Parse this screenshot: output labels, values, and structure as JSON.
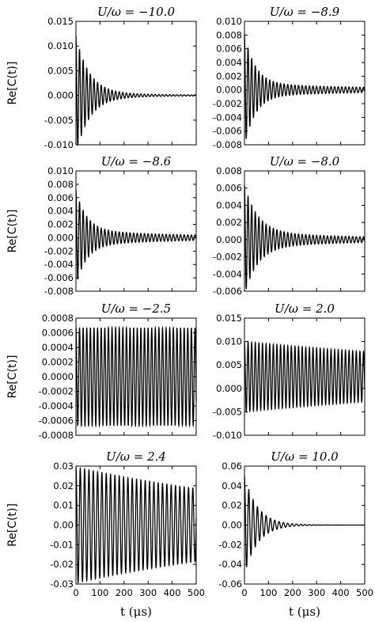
{
  "chart_data": {
    "type": "line",
    "xlabel": "t (μs)",
    "ylabel": "Re[C(t)]",
    "x_ticks": [
      "0",
      "100",
      "200",
      "300",
      "400",
      "500"
    ],
    "xlim": [
      0,
      500
    ],
    "panels": [
      {
        "title": "U/ω = −10.0",
        "ylim": [
          -0.01,
          0.015
        ],
        "y_ticks": [
          "0.015",
          "0.010",
          "0.005",
          "0.000",
          "-0.005",
          "-0.010"
        ],
        "signal": {
          "amplitude": 0.0115,
          "decay": 55,
          "floor": 0.00055,
          "floor_decay": 300,
          "offset": 0.0,
          "period": 15
        }
      },
      {
        "title": "U/ω = −8.9",
        "ylim": [
          -0.008,
          0.01
        ],
        "y_ticks": [
          "0.010",
          "0.008",
          "0.006",
          "0.004",
          "0.002",
          "0.000",
          "-0.002",
          "-0.004",
          "-0.006",
          "-0.008"
        ],
        "signal": {
          "amplitude": 0.0073,
          "decay": 45,
          "floor": 0.0009,
          "floor_decay": 600,
          "offset": 0.0,
          "period": 15
        }
      },
      {
        "title": "U/ω = −8.6",
        "ylim": [
          -0.008,
          0.01
        ],
        "y_ticks": [
          "0.010",
          "0.008",
          "0.006",
          "0.004",
          "0.002",
          "0.000",
          "-0.002",
          "-0.004",
          "-0.006",
          "-0.008"
        ],
        "signal": {
          "amplitude": 0.006,
          "decay": 45,
          "floor": 0.0011,
          "floor_decay": 500,
          "offset": 0.0,
          "period": 15
        }
      },
      {
        "title": "U/ω = −8.0",
        "ylim": [
          -0.006,
          0.008
        ],
        "y_ticks": [
          "0.008",
          "0.006",
          "0.004",
          "0.002",
          "0.000",
          "-0.002",
          "-0.004",
          "-0.006"
        ],
        "signal": {
          "amplitude": 0.0055,
          "decay": 55,
          "floor": 0.0009,
          "floor_decay": 500,
          "offset": 0.0,
          "period": 15
        }
      },
      {
        "title": "U/ω = −2.5",
        "ylim": [
          -0.0008,
          0.0008
        ],
        "y_ticks": [
          "0.0008",
          "0.0006",
          "0.0004",
          "0.0002",
          "0.0000",
          "-0.0002",
          "-0.0004",
          "-0.0006",
          "-0.0008"
        ],
        "signal": {
          "amplitude": 0.0,
          "decay": 50,
          "floor": 0.00067,
          "floor_decay": 100000,
          "offset": 0.0,
          "period": 15
        }
      },
      {
        "title": "U/ω = 2.0",
        "ylim": [
          -0.01,
          0.015
        ],
        "y_ticks": [
          "0.015",
          "0.010",
          "0.005",
          "0.000",
          "-0.005",
          "-0.010"
        ],
        "signal": {
          "amplitude": 0.0,
          "decay": 50,
          "floor": 0.0075,
          "floor_decay": 1500,
          "offset": 0.0025,
          "period": 15
        }
      },
      {
        "title": "U/ω = 2.4",
        "ylim": [
          -0.03,
          0.03
        ],
        "y_ticks": [
          "0.03",
          "0.02",
          "0.01",
          "0.00",
          "-0.01",
          "-0.02",
          "-0.03"
        ],
        "signal": {
          "amplitude": 0.0,
          "decay": 50,
          "floor": 0.0295,
          "floor_decay": 1080,
          "offset": 0.0,
          "period": 18
        }
      },
      {
        "title": "U/ω = 10.0",
        "ylim": [
          -0.06,
          0.06
        ],
        "y_ticks": [
          "0.06",
          "0.04",
          "0.02",
          "0.00",
          "-0.02",
          "-0.04",
          "-0.06"
        ],
        "signal": {
          "amplitude": 0.05,
          "decay": 55,
          "floor": 0.0,
          "floor_decay": 300,
          "offset": 0.0,
          "period": 18
        }
      }
    ]
  }
}
